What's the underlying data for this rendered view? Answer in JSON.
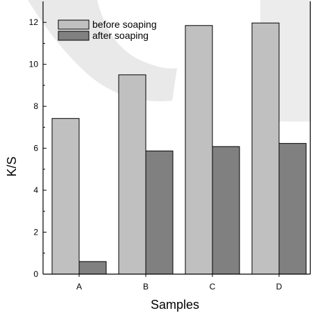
{
  "chart_data": {
    "type": "bar",
    "title": "",
    "xlabel": "Samples",
    "ylabel": "K/S",
    "categories": [
      "A",
      "B",
      "C",
      "D"
    ],
    "ylim": [
      0,
      13
    ],
    "yticks": [
      0,
      2,
      4,
      6,
      8,
      10,
      12
    ],
    "grid": false,
    "legend_position": "top-left",
    "series": [
      {
        "name": "before soaping",
        "color": "#c0c0c0",
        "values": [
          7.42,
          9.5,
          11.85,
          11.97
        ]
      },
      {
        "name": "after soaping",
        "color": "#808080",
        "values": [
          0.6,
          5.87,
          6.08,
          6.23
        ]
      }
    ]
  }
}
